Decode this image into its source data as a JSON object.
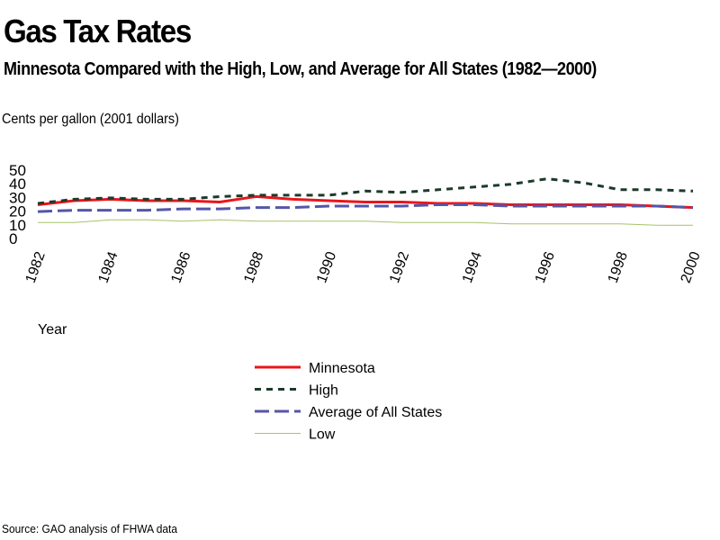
{
  "chart_data": {
    "type": "line",
    "title": "Gas Tax Rates",
    "subtitle": "Minnesota Compared with the High, Low, and Average for All States (1982—2000)",
    "ylabel": "Cents per gallon (2001 dollars)",
    "xlabel": "Year",
    "source": "Source: GAO analysis of FHWA data",
    "ylim": [
      0,
      50
    ],
    "yticks": [
      0,
      10,
      20,
      30,
      40,
      50
    ],
    "xlim": [
      1982,
      2000
    ],
    "xticks": [
      "1982",
      "1984",
      "1986",
      "1988",
      "1990",
      "1992",
      "1994",
      "1996",
      "1998",
      "2000"
    ],
    "grid": false,
    "legend": "below",
    "x": [
      1982,
      1983,
      1984,
      1985,
      1986,
      1987,
      1988,
      1989,
      1990,
      1991,
      1992,
      1993,
      1994,
      1995,
      1996,
      1997,
      1998,
      1999,
      2000
    ],
    "series": [
      {
        "name": "Minnesota",
        "color": "#e8161b",
        "style": "solid",
        "values": [
          24,
          27,
          28,
          27,
          27,
          26,
          30,
          28,
          27,
          26,
          26,
          25,
          25,
          24,
          24,
          24,
          24,
          23,
          22
        ]
      },
      {
        "name": "High",
        "color": "#1c3a2a",
        "style": "dashed",
        "values": [
          25,
          28,
          29,
          28,
          28,
          30,
          31,
          31,
          31,
          34,
          33,
          35,
          37,
          39,
          43,
          40,
          35,
          35,
          34
        ]
      },
      {
        "name": "Average of All States",
        "color": "#5456a8",
        "style": "longdash",
        "values": [
          19,
          20,
          20,
          20,
          21,
          21,
          22,
          22,
          23,
          23,
          23,
          24,
          24,
          23,
          23,
          23,
          23,
          23,
          22
        ]
      },
      {
        "name": "Low",
        "color": "#a8c26a",
        "style": "solid",
        "values": [
          11,
          11,
          13,
          13,
          12,
          13,
          12,
          12,
          12,
          12,
          11,
          11,
          11,
          10,
          10,
          10,
          10,
          9,
          9
        ]
      }
    ]
  }
}
